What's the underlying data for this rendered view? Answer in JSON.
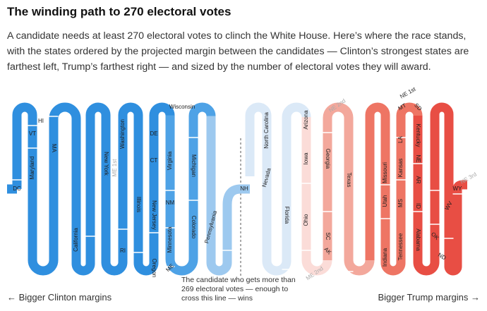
{
  "title": "The winding path to 270 electoral votes",
  "subtitle": "A candidate needs at least 270 electoral votes to clinch the White House. Here’s where the race stands, with the states ordered by the projected margin between the candidates — Clinton’s strongest states are farthest left, Trump’s farthest right — and sized by the number of electoral votes they will award.",
  "footer": {
    "left": "← Bigger Clinton margins",
    "right": "Bigger Trump margins →",
    "threshold_note": "The candidate who gets more than 269 electoral votes — enough to cross this line — wins"
  },
  "colors": {
    "clinton_strong": "#2f8fdf",
    "clinton_lean": "#4ea2e6",
    "clinton_light": "#9dc9ef",
    "tossup_blue": "#dbe9f7",
    "tossup_red": "#fbdcd8",
    "trump_light": "#f3a89c",
    "trump_lean": "#ee7564",
    "trump_strong": "#e84e44"
  },
  "chart_data": {
    "type": "path",
    "threshold_electoral_votes": 270,
    "states": [
      {
        "label": "DC",
        "ev": 3,
        "side": "clinton"
      },
      {
        "label": "Maryland",
        "ev": 10,
        "side": "clinton"
      },
      {
        "label": "VT",
        "ev": 3,
        "side": "clinton"
      },
      {
        "label": "HI",
        "ev": 4,
        "side": "clinton"
      },
      {
        "label": "MA",
        "ev": 11,
        "side": "clinton"
      },
      {
        "label": "California",
        "ev": 55,
        "side": "clinton"
      },
      {
        "label": "New York",
        "ev": 29,
        "side": "clinton"
      },
      {
        "label": "RI",
        "ev": 4,
        "side": "clinton"
      },
      {
        "label": "Illinois",
        "ev": 20,
        "side": "clinton"
      },
      {
        "label": "ME 1st",
        "ev": 1,
        "side": "clinton"
      },
      {
        "label": "Washington",
        "ev": 12,
        "side": "clinton"
      },
      {
        "label": "DE",
        "ev": 3,
        "side": "clinton"
      },
      {
        "label": "CT",
        "ev": 7,
        "side": "clinton"
      },
      {
        "label": "New Jersey",
        "ev": 14,
        "side": "clinton"
      },
      {
        "label": "Oregon",
        "ev": 7,
        "side": "clinton"
      },
      {
        "label": "ME",
        "ev": 2,
        "side": "clinton"
      },
      {
        "label": "Minnesota",
        "ev": 10,
        "side": "clinton"
      },
      {
        "label": "NM",
        "ev": 5,
        "side": "clinton"
      },
      {
        "label": "Virginia",
        "ev": 13,
        "side": "clinton"
      },
      {
        "label": "Wisconsin",
        "ev": 10,
        "side": "clinton"
      },
      {
        "label": "Michigan",
        "ev": 16,
        "side": "clinton"
      },
      {
        "label": "Colorado",
        "ev": 9,
        "side": "clinton"
      },
      {
        "label": "Pennsylvania",
        "ev": 20,
        "side": "clinton"
      },
      {
        "label": "NH",
        "ev": 4,
        "side": "clinton"
      },
      {
        "label": "Nevada",
        "ev": 6,
        "side": "trump"
      },
      {
        "label": "North Carolina",
        "ev": 15,
        "side": "trump"
      },
      {
        "label": "Florida",
        "ev": 29,
        "side": "trump"
      },
      {
        "label": "ME 2nd",
        "ev": 1,
        "side": "trump"
      },
      {
        "label": "Ohio",
        "ev": 18,
        "side": "trump"
      },
      {
        "label": "Iowa",
        "ev": 6,
        "side": "trump"
      },
      {
        "label": "Arizona",
        "ev": 11,
        "side": "trump"
      },
      {
        "label": "NE 2nd",
        "ev": 1,
        "side": "trump"
      },
      {
        "label": "Georgia",
        "ev": 16,
        "side": "trump"
      },
      {
        "label": "SC",
        "ev": 9,
        "side": "trump"
      },
      {
        "label": "AK",
        "ev": 3,
        "side": "trump"
      },
      {
        "label": "Texas",
        "ev": 38,
        "side": "trump"
      },
      {
        "label": "Missouri",
        "ev": 10,
        "side": "trump"
      },
      {
        "label": "Utah",
        "ev": 6,
        "side": "trump"
      },
      {
        "label": "Indiana",
        "ev": 11,
        "side": "trump"
      },
      {
        "label": "Tennessee",
        "ev": 11,
        "side": "trump"
      },
      {
        "label": "MS",
        "ev": 6,
        "side": "trump"
      },
      {
        "label": "Kansas",
        "ev": 6,
        "side": "trump"
      },
      {
        "label": "LA",
        "ev": 8,
        "side": "trump"
      },
      {
        "label": "MT",
        "ev": 3,
        "side": "trump"
      },
      {
        "label": "NE 1st",
        "ev": 1,
        "side": "trump"
      },
      {
        "label": "SD",
        "ev": 3,
        "side": "trump"
      },
      {
        "label": "Kentucky",
        "ev": 8,
        "side": "trump"
      },
      {
        "label": "NE",
        "ev": 2,
        "side": "trump"
      },
      {
        "label": "AR",
        "ev": 6,
        "side": "trump"
      },
      {
        "label": "ID",
        "ev": 4,
        "side": "trump"
      },
      {
        "label": "Alabama",
        "ev": 9,
        "side": "trump"
      },
      {
        "label": "OK",
        "ev": 7,
        "side": "trump"
      },
      {
        "label": "ND",
        "ev": 3,
        "side": "trump"
      },
      {
        "label": "WV",
        "ev": 5,
        "side": "trump"
      },
      {
        "label": "WY",
        "ev": 3,
        "side": "trump"
      },
      {
        "label": "NE 3rd",
        "ev": 1,
        "side": "trump"
      }
    ]
  }
}
